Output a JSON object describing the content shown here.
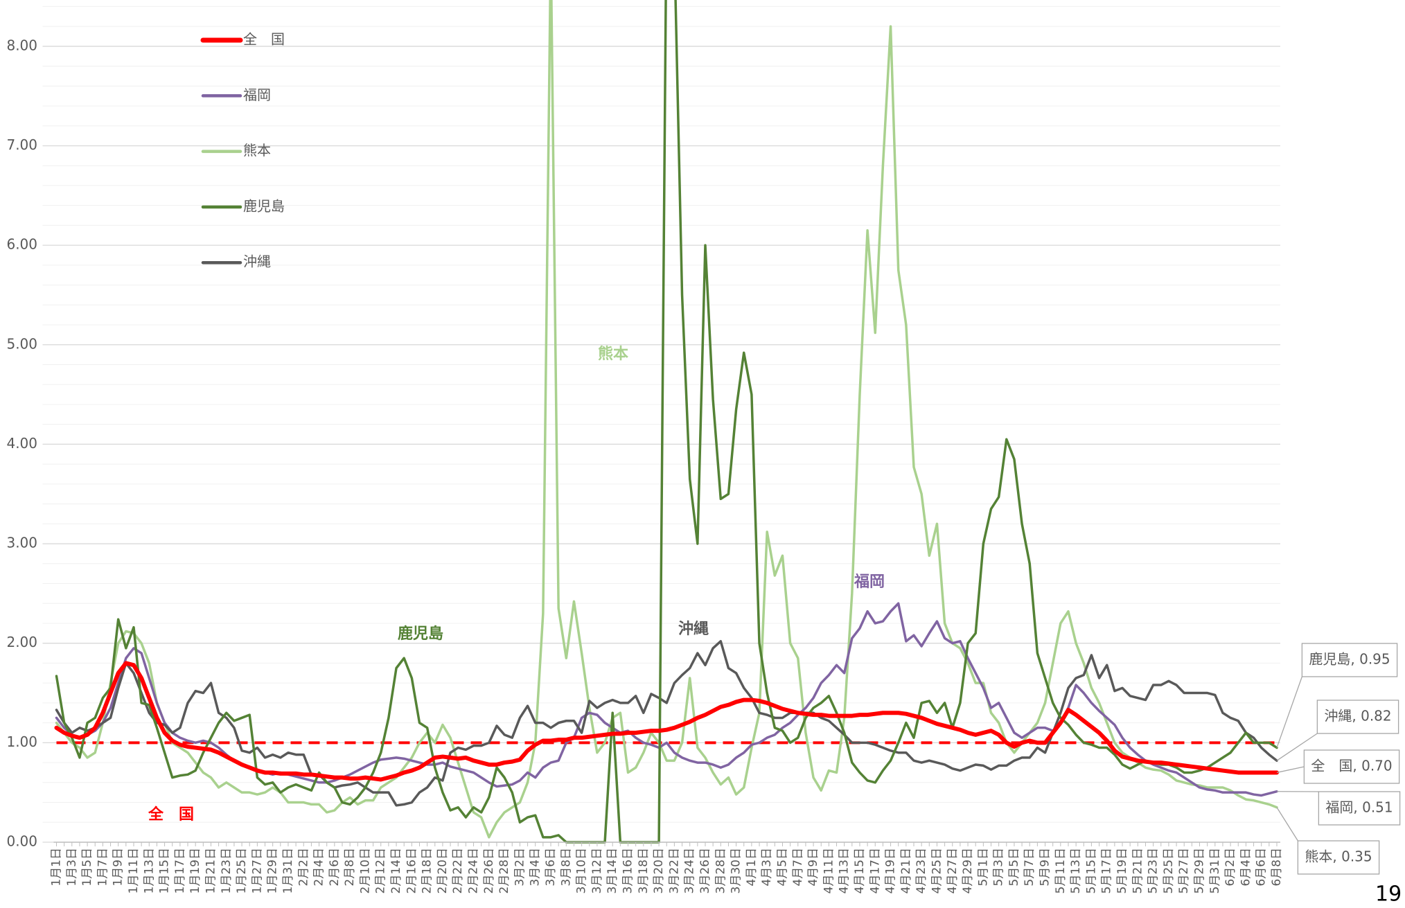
{
  "chart_data": {
    "type": "line",
    "page_number": "19",
    "categories": [
      "1月1日",
      null,
      "1月3日",
      null,
      "1月5日",
      null,
      "1月7日",
      null,
      "1月9日",
      null,
      "1月11日",
      null,
      "1月13日",
      null,
      "1月15日",
      null,
      "1月17日",
      null,
      "1月19日",
      null,
      "1月21日",
      null,
      "1月23日",
      null,
      "1月25日",
      null,
      "1月27日",
      null,
      "1月29日",
      null,
      "1月31日",
      null,
      "2月2日",
      null,
      "2月4日",
      null,
      "2月6日",
      null,
      "2月8日",
      null,
      "2月10日",
      null,
      "2月12日",
      null,
      "2月14日",
      null,
      "2月16日",
      null,
      "2月18日",
      null,
      "2月20日",
      null,
      "2月22日",
      null,
      "2月24日",
      null,
      "2月26日",
      null,
      "2月28日",
      null,
      "3月2日",
      null,
      "3月4日",
      null,
      "3月6日",
      null,
      "3月8日",
      null,
      "3月10日",
      null,
      "3月12日",
      null,
      "3月14日",
      null,
      "3月16日",
      null,
      "3月18日",
      null,
      "3月20日",
      null,
      "3月22日",
      null,
      "3月24日",
      null,
      "3月26日",
      null,
      "3月28日",
      null,
      "3月30日",
      null,
      "4月1日",
      null,
      "4月3日",
      null,
      "4月5日",
      null,
      "4月7日",
      null,
      "4月9日",
      null,
      "4月11日",
      null,
      "4月13日",
      null,
      "4月15日",
      null,
      "4月17日",
      null,
      "4月19日",
      null,
      "4月21日",
      null,
      "4月23日",
      null,
      "4月25日",
      null,
      "4月27日",
      null,
      "4月29日",
      null,
      "5月1日",
      null,
      "5月3日",
      null,
      "5月5日",
      null,
      "5月7日",
      null,
      "5月9日",
      null,
      "5月11日",
      null,
      "5月13日",
      null,
      "5月15日",
      null,
      "5月17日",
      null,
      "5月19日",
      null,
      "5月21日",
      null,
      "5月23日",
      null,
      "5月25日",
      null,
      "5月27日",
      null,
      "5月29日",
      null,
      "5月31日",
      null,
      "6月2日",
      null,
      "6月4日",
      null,
      "6月6日",
      null,
      "6月8日"
    ],
    "series": [
      {
        "name": "全　国",
        "color": "#ff0000",
        "width": 6,
        "annotation": "全　国",
        "end_label": "全　国, 0.70",
        "values": [
          1.15,
          1.1,
          1.07,
          1.05,
          1.08,
          1.15,
          1.3,
          1.5,
          1.7,
          1.8,
          1.78,
          1.65,
          1.45,
          1.25,
          1.1,
          1.02,
          0.98,
          0.96,
          0.95,
          0.94,
          0.93,
          0.9,
          0.86,
          0.82,
          0.78,
          0.75,
          0.72,
          0.7,
          0.7,
          0.69,
          0.69,
          0.69,
          0.68,
          0.68,
          0.67,
          0.66,
          0.65,
          0.65,
          0.64,
          0.64,
          0.65,
          0.64,
          0.63,
          0.65,
          0.67,
          0.7,
          0.72,
          0.75,
          0.8,
          0.85,
          0.86,
          0.85,
          0.84,
          0.85,
          0.82,
          0.8,
          0.78,
          0.78,
          0.8,
          0.81,
          0.83,
          0.92,
          0.98,
          1.02,
          1.02,
          1.03,
          1.03,
          1.05,
          1.05,
          1.06,
          1.07,
          1.08,
          1.09,
          1.09,
          1.1,
          1.1,
          1.11,
          1.12,
          1.12,
          1.13,
          1.15,
          1.18,
          1.21,
          1.25,
          1.28,
          1.32,
          1.36,
          1.38,
          1.41,
          1.43,
          1.43,
          1.42,
          1.4,
          1.37,
          1.34,
          1.32,
          1.3,
          1.29,
          1.28,
          1.28,
          1.27,
          1.27,
          1.27,
          1.27,
          1.28,
          1.28,
          1.29,
          1.3,
          1.3,
          1.3,
          1.29,
          1.27,
          1.25,
          1.22,
          1.19,
          1.17,
          1.15,
          1.13,
          1.1,
          1.08,
          1.1,
          1.12,
          1.08,
          1.0,
          0.96,
          1.0,
          1.02,
          1.0,
          1.0,
          1.1,
          1.2,
          1.33,
          1.28,
          1.22,
          1.16,
          1.1,
          1.02,
          0.92,
          0.86,
          0.84,
          0.82,
          0.81,
          0.8,
          0.8,
          0.79,
          0.78,
          0.77,
          0.76,
          0.75,
          0.74,
          0.73,
          0.72,
          0.71,
          0.7,
          0.7,
          0.7,
          0.7,
          0.7,
          0.7
        ]
      },
      {
        "name": "福岡",
        "color": "#8064a2",
        "width": 3.5,
        "annotation": "福岡",
        "end_label": "福岡, 0.51",
        "values": [
          1.25,
          1.15,
          1.08,
          1.05,
          1.08,
          1.12,
          1.2,
          1.35,
          1.6,
          1.85,
          1.95,
          1.9,
          1.65,
          1.4,
          1.2,
          1.1,
          1.05,
          1.02,
          1.0,
          1.02,
          1.0,
          0.95,
          0.88,
          0.82,
          0.78,
          0.76,
          0.73,
          0.7,
          0.68,
          0.7,
          0.68,
          0.66,
          0.64,
          0.62,
          0.6,
          0.6,
          0.62,
          0.65,
          0.68,
          0.72,
          0.76,
          0.8,
          0.83,
          0.84,
          0.85,
          0.84,
          0.82,
          0.8,
          0.78,
          0.78,
          0.8,
          0.76,
          0.74,
          0.72,
          0.7,
          0.65,
          0.6,
          0.56,
          0.57,
          0.58,
          0.62,
          0.7,
          0.65,
          0.75,
          0.8,
          0.82,
          1.0,
          1.05,
          1.25,
          1.3,
          1.28,
          1.2,
          1.15,
          1.1,
          1.12,
          1.05,
          1.0,
          0.98,
          0.95,
          1.0,
          0.9,
          0.85,
          0.82,
          0.8,
          0.8,
          0.78,
          0.75,
          0.78,
          0.85,
          0.9,
          0.98,
          1.0,
          1.05,
          1.08,
          1.15,
          1.2,
          1.28,
          1.35,
          1.45,
          1.6,
          1.68,
          1.78,
          1.7,
          2.05,
          2.15,
          2.32,
          2.2,
          2.22,
          2.32,
          2.4,
          2.02,
          2.08,
          1.97,
          2.1,
          2.22,
          2.05,
          2.0,
          2.02,
          1.85,
          1.7,
          1.55,
          1.35,
          1.4,
          1.25,
          1.1,
          1.05,
          1.1,
          1.15,
          1.15,
          1.12,
          1.2,
          1.35,
          1.58,
          1.5,
          1.4,
          1.32,
          1.25,
          1.18,
          1.05,
          0.95,
          0.88,
          0.82,
          0.78,
          0.75,
          0.72,
          0.7,
          0.65,
          0.6,
          0.55,
          0.53,
          0.52,
          0.5,
          0.5,
          0.5,
          0.5,
          0.48,
          0.47,
          0.49,
          0.51
        ]
      },
      {
        "name": "熊本",
        "color": "#a9d18e",
        "width": 3.5,
        "annotation": "熊本",
        "end_label": "熊本, 0.35",
        "values": [
          1.2,
          1.1,
          1.0,
          0.95,
          0.85,
          0.9,
          1.2,
          1.6,
          2.0,
          2.12,
          2.1,
          2.0,
          1.8,
          1.4,
          1.2,
          1.0,
          0.95,
          0.9,
          0.8,
          0.7,
          0.65,
          0.55,
          0.6,
          0.55,
          0.5,
          0.5,
          0.48,
          0.5,
          0.55,
          0.5,
          0.4,
          0.4,
          0.4,
          0.38,
          0.38,
          0.3,
          0.32,
          0.4,
          0.45,
          0.38,
          0.42,
          0.42,
          0.55,
          0.6,
          0.65,
          0.75,
          0.85,
          1.0,
          1.1,
          1.0,
          1.18,
          1.05,
          0.8,
          0.55,
          0.3,
          0.25,
          0.05,
          0.2,
          0.3,
          0.35,
          0.4,
          0.6,
          1.0,
          2.3,
          9.0,
          2.35,
          1.85,
          2.42,
          1.9,
          1.35,
          0.9,
          1.0,
          1.25,
          1.3,
          0.7,
          0.75,
          0.9,
          1.1,
          1.0,
          0.82,
          0.82,
          1.0,
          1.65,
          0.95,
          0.85,
          0.7,
          0.58,
          0.65,
          0.48,
          0.55,
          0.95,
          1.3,
          3.12,
          2.68,
          2.88,
          2.0,
          1.85,
          1.1,
          0.65,
          0.52,
          0.72,
          0.7,
          1.25,
          2.5,
          4.5,
          6.15,
          5.12,
          6.8,
          8.2,
          5.75,
          5.2,
          3.77,
          3.5,
          2.88,
          3.2,
          2.2,
          2.0,
          1.95,
          1.8,
          1.6,
          1.6,
          1.3,
          1.2,
          1.0,
          0.9,
          1.0,
          1.1,
          1.2,
          1.4,
          1.8,
          2.2,
          2.32,
          2.0,
          1.8,
          1.55,
          1.4,
          1.2,
          1.0,
          0.9,
          0.85,
          0.8,
          0.75,
          0.73,
          0.72,
          0.68,
          0.62,
          0.6,
          0.58,
          0.57,
          0.55,
          0.55,
          0.55,
          0.52,
          0.47,
          0.43,
          0.42,
          0.4,
          0.38,
          0.35
        ]
      },
      {
        "name": "鹿児島",
        "color": "#548235",
        "width": 3.5,
        "annotation": "鹿児島",
        "end_label": "鹿児島, 0.95",
        "values": [
          1.67,
          1.2,
          1.05,
          0.85,
          1.2,
          1.25,
          1.45,
          1.55,
          2.24,
          1.95,
          2.16,
          1.4,
          1.38,
          1.15,
          0.9,
          0.65,
          0.67,
          0.68,
          0.72,
          0.9,
          1.05,
          1.2,
          1.3,
          1.22,
          1.25,
          1.28,
          0.65,
          0.58,
          0.6,
          0.5,
          0.55,
          0.58,
          0.55,
          0.52,
          0.7,
          0.6,
          0.55,
          0.4,
          0.38,
          0.45,
          0.55,
          0.7,
          0.9,
          1.25,
          1.75,
          1.85,
          1.65,
          1.2,
          1.15,
          0.75,
          0.5,
          0.32,
          0.35,
          0.25,
          0.35,
          0.3,
          0.45,
          0.75,
          0.65,
          0.5,
          0.2,
          0.25,
          0.27,
          0.05,
          0.05,
          0.07,
          0.0,
          0.0,
          0.0,
          0.0,
          0.0,
          0.0,
          1.3,
          0.0,
          0.0,
          0.0,
          0.0,
          0.0,
          0.0,
          9.5,
          9.0,
          5.5,
          3.65,
          3.0,
          6.0,
          4.45,
          3.45,
          3.5,
          4.35,
          4.92,
          4.5,
          2.0,
          1.5,
          1.15,
          1.12,
          1.0,
          1.05,
          1.25,
          1.35,
          1.4,
          1.47,
          1.3,
          1.1,
          0.8,
          0.7,
          0.62,
          0.6,
          0.72,
          0.82,
          1.0,
          1.2,
          1.05,
          1.4,
          1.42,
          1.3,
          1.4,
          1.15,
          1.4,
          2.0,
          2.1,
          3.0,
          3.35,
          3.47,
          4.05,
          3.85,
          3.2,
          2.8,
          1.9,
          1.65,
          1.4,
          1.25,
          1.18,
          1.08,
          1.0,
          0.98,
          0.95,
          0.95,
          0.88,
          0.78,
          0.74,
          0.78,
          0.82,
          0.8,
          0.78,
          0.78,
          0.75,
          0.7,
          0.7,
          0.72,
          0.75,
          0.8,
          0.85,
          0.9,
          1.0,
          1.1,
          1.0,
          1.0,
          1.0,
          0.95
        ]
      },
      {
        "name": "沖縄",
        "color": "#595959",
        "width": 3.5,
        "annotation": "沖縄",
        "end_label": "沖縄, 0.82",
        "values": [
          1.33,
          1.2,
          1.1,
          1.15,
          1.12,
          1.15,
          1.2,
          1.25,
          1.55,
          1.8,
          1.7,
          1.5,
          1.3,
          1.2,
          1.18,
          1.1,
          1.15,
          1.4,
          1.52,
          1.5,
          1.6,
          1.3,
          1.25,
          1.15,
          0.92,
          0.9,
          0.95,
          0.85,
          0.88,
          0.85,
          0.9,
          0.88,
          0.88,
          0.68,
          0.68,
          0.6,
          0.55,
          0.57,
          0.58,
          0.6,
          0.55,
          0.5,
          0.5,
          0.5,
          0.37,
          0.38,
          0.4,
          0.5,
          0.55,
          0.65,
          0.62,
          0.9,
          0.95,
          0.93,
          0.97,
          0.97,
          1.0,
          1.17,
          1.08,
          1.05,
          1.25,
          1.37,
          1.2,
          1.2,
          1.15,
          1.2,
          1.22,
          1.22,
          1.1,
          1.42,
          1.35,
          1.4,
          1.43,
          1.4,
          1.4,
          1.47,
          1.3,
          1.49,
          1.45,
          1.4,
          1.6,
          1.68,
          1.75,
          1.9,
          1.78,
          1.95,
          2.02,
          1.75,
          1.7,
          1.55,
          1.45,
          1.3,
          1.28,
          1.25,
          1.25,
          1.3,
          1.3,
          1.3,
          1.3,
          1.25,
          1.22,
          1.15,
          1.08,
          1.0,
          1.0,
          1.0,
          0.98,
          0.95,
          0.92,
          0.9,
          0.9,
          0.82,
          0.8,
          0.82,
          0.8,
          0.78,
          0.74,
          0.72,
          0.75,
          0.78,
          0.77,
          0.73,
          0.77,
          0.77,
          0.82,
          0.85,
          0.85,
          0.95,
          0.9,
          1.1,
          1.3,
          1.55,
          1.65,
          1.68,
          1.88,
          1.65,
          1.78,
          1.52,
          1.55,
          1.47,
          1.45,
          1.43,
          1.58,
          1.58,
          1.62,
          1.58,
          1.5,
          1.5,
          1.5,
          1.5,
          1.48,
          1.3,
          1.25,
          1.22,
          1.1,
          1.05,
          0.95,
          0.88,
          0.82
        ]
      }
    ],
    "reference_line": {
      "value": 1,
      "color": "#ff0000",
      "dashed": true
    },
    "ylim": [
      0,
      8.5
    ],
    "yticks": [
      {
        "value": 0,
        "label": "0.00"
      },
      {
        "value": 1,
        "label": "1.00"
      },
      {
        "value": 2,
        "label": "2.00"
      },
      {
        "value": 3,
        "label": "3.00"
      },
      {
        "value": 4,
        "label": "4.00"
      },
      {
        "value": 5,
        "label": "5.00"
      },
      {
        "value": 6,
        "label": "6.00"
      },
      {
        "value": 7,
        "label": "7.00"
      },
      {
        "value": 8,
        "label": "8.00"
      }
    ],
    "minor_grid": 0.2,
    "grid": true,
    "legend": "top-left"
  }
}
